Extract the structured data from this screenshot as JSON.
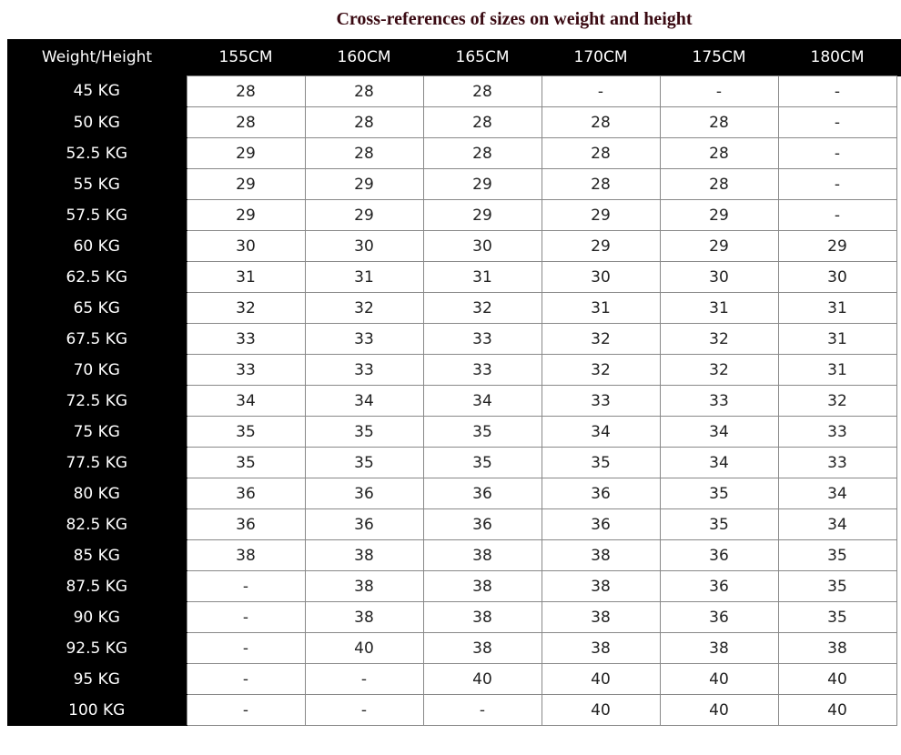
{
  "title": "Cross-references of sizes on weight and height",
  "table": {
    "corner": "Weight/Height",
    "columns": [
      "155CM",
      "160CM",
      "165CM",
      "170CM",
      "175CM",
      "180CM"
    ],
    "rows": [
      {
        "label": "45 KG",
        "values": [
          "28",
          "28",
          "28",
          "-",
          "-",
          "-"
        ]
      },
      {
        "label": "50 KG",
        "values": [
          "28",
          "28",
          "28",
          "28",
          "28",
          "-"
        ]
      },
      {
        "label": "52.5 KG",
        "values": [
          "29",
          "28",
          "28",
          "28",
          "28",
          "-"
        ]
      },
      {
        "label": "55 KG",
        "values": [
          "29",
          "29",
          "29",
          "28",
          "28",
          "-"
        ]
      },
      {
        "label": "57.5 KG",
        "values": [
          "29",
          "29",
          "29",
          "29",
          "29",
          "-"
        ]
      },
      {
        "label": "60 KG",
        "values": [
          "30",
          "30",
          "30",
          "29",
          "29",
          "29"
        ]
      },
      {
        "label": "62.5 KG",
        "values": [
          "31",
          "31",
          "31",
          "30",
          "30",
          "30"
        ]
      },
      {
        "label": "65 KG",
        "values": [
          "32",
          "32",
          "32",
          "31",
          "31",
          "31"
        ]
      },
      {
        "label": "67.5 KG",
        "values": [
          "33",
          "33",
          "33",
          "32",
          "32",
          "31"
        ]
      },
      {
        "label": "70 KG",
        "values": [
          "33",
          "33",
          "33",
          "32",
          "32",
          "31"
        ]
      },
      {
        "label": "72.5 KG",
        "values": [
          "34",
          "34",
          "34",
          "33",
          "33",
          "32"
        ]
      },
      {
        "label": "75 KG",
        "values": [
          "35",
          "35",
          "35",
          "34",
          "34",
          "33"
        ]
      },
      {
        "label": "77.5 KG",
        "values": [
          "35",
          "35",
          "35",
          "35",
          "34",
          "33"
        ]
      },
      {
        "label": "80 KG",
        "values": [
          "36",
          "36",
          "36",
          "36",
          "35",
          "34"
        ]
      },
      {
        "label": "82.5 KG",
        "values": [
          "36",
          "36",
          "36",
          "36",
          "35",
          "34"
        ]
      },
      {
        "label": "85 KG",
        "values": [
          "38",
          "38",
          "38",
          "38",
          "36",
          "35"
        ]
      },
      {
        "label": "87.5 KG",
        "values": [
          "-",
          "38",
          "38",
          "38",
          "36",
          "35"
        ]
      },
      {
        "label": "90 KG",
        "values": [
          "-",
          "38",
          "38",
          "38",
          "36",
          "35"
        ]
      },
      {
        "label": "92.5 KG",
        "values": [
          "-",
          "40",
          "38",
          "38",
          "38",
          "38"
        ]
      },
      {
        "label": "95 KG",
        "values": [
          "-",
          "-",
          "40",
          "40",
          "40",
          "40"
        ]
      },
      {
        "label": "100 KG",
        "values": [
          "-",
          "-",
          "-",
          "40",
          "40",
          "40"
        ]
      }
    ]
  }
}
